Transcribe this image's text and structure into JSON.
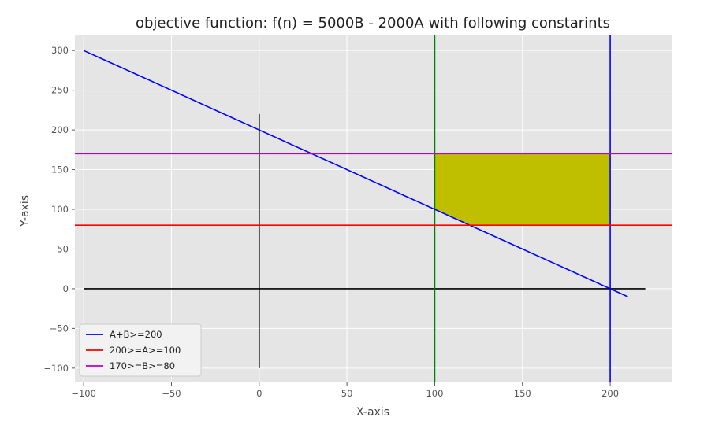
{
  "chart_data": {
    "type": "line",
    "title": "objective function: f(n) = 5000B - 2000A with following constarints",
    "xlabel": "X-axis",
    "ylabel": "Y-axis",
    "xlim": [
      -105,
      235
    ],
    "ylim": [
      -118,
      320
    ],
    "xticks": [
      -100,
      -50,
      0,
      50,
      100,
      150,
      200
    ],
    "yticks": [
      -100,
      -50,
      0,
      50,
      100,
      150,
      200,
      250,
      300
    ],
    "grid": true,
    "legend_position": "lower-left",
    "legend": [
      {
        "label": "A+B>=200",
        "color": "#0000ff"
      },
      {
        "label": "200>=A>=100",
        "color": "#ff0000"
      },
      {
        "label": "170>=B>=80",
        "color": "#bf00bf"
      }
    ],
    "series": [
      {
        "name": "A+B>=200",
        "color": "#0000ff",
        "x": [
          -100,
          210
        ],
        "y": [
          300,
          -10
        ]
      },
      {
        "name": "200>=A>=100",
        "color": "#ff0000",
        "x": [
          -105,
          235
        ],
        "y": [
          80,
          80
        ]
      },
      {
        "name": "170>=B>=80",
        "color": "#bf00bf",
        "x": [
          -105,
          235
        ],
        "y": [
          170,
          170
        ]
      }
    ],
    "vertical_lines": [
      {
        "x": 100,
        "color": "#008000"
      },
      {
        "x": 200,
        "color": "#0000ff"
      }
    ],
    "axis_lines": [
      {
        "x": [
          0,
          0
        ],
        "y": [
          -100,
          220
        ],
        "color": "#000000"
      },
      {
        "x": [
          -100,
          220
        ],
        "y": [
          0,
          0
        ],
        "color": "#000000"
      }
    ],
    "feasible_region": {
      "polygon": [
        [
          100,
          100
        ],
        [
          100,
          170
        ],
        [
          200,
          170
        ],
        [
          200,
          80
        ],
        [
          120,
          80
        ]
      ],
      "color": "#bfbf00"
    }
  }
}
